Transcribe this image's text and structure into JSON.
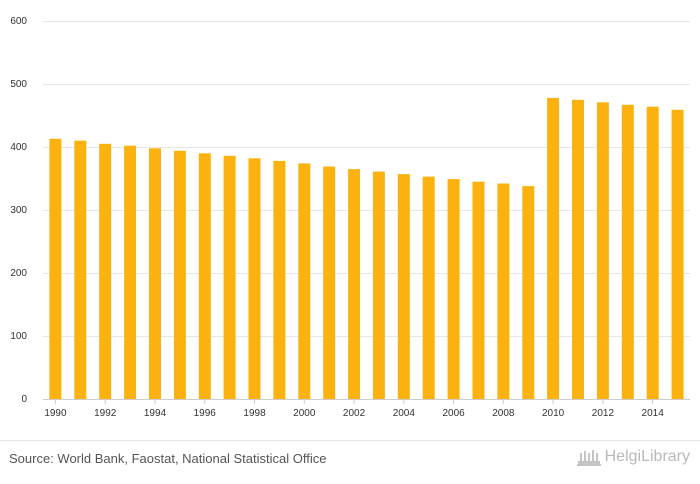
{
  "chart_data": {
    "type": "bar",
    "categories": [
      "1990",
      "1991",
      "1992",
      "1993",
      "1994",
      "1995",
      "1996",
      "1997",
      "1998",
      "1999",
      "2000",
      "2001",
      "2002",
      "2003",
      "2004",
      "2005",
      "2006",
      "2007",
      "2008",
      "2009",
      "2010",
      "2011",
      "2012",
      "2013",
      "2014",
      "2015"
    ],
    "x_tick_labels": [
      "1990",
      "1992",
      "1994",
      "1996",
      "1998",
      "2000",
      "2002",
      "2004",
      "2006",
      "2008",
      "2010",
      "2012",
      "2014"
    ],
    "values": [
      413,
      410,
      405,
      402,
      398,
      394,
      390,
      386,
      382,
      378,
      374,
      369,
      365,
      361,
      357,
      353,
      349,
      345,
      342,
      338,
      478,
      475,
      471,
      467,
      464,
      459
    ],
    "ylim": [
      0,
      600
    ],
    "y_ticks": [
      0,
      100,
      200,
      300,
      400,
      500,
      600
    ],
    "grid": true,
    "bar_color": "#FBB20F",
    "title": "",
    "xlabel": "",
    "ylabel": ""
  },
  "footer": {
    "source": "Source: World Bank, Faostat, National Statistical Office",
    "brand": "HelgiLibrary"
  },
  "colors": {
    "bar": "#FBB20F",
    "grid": "#e6e6e6",
    "brand": "#b9b9b9"
  }
}
